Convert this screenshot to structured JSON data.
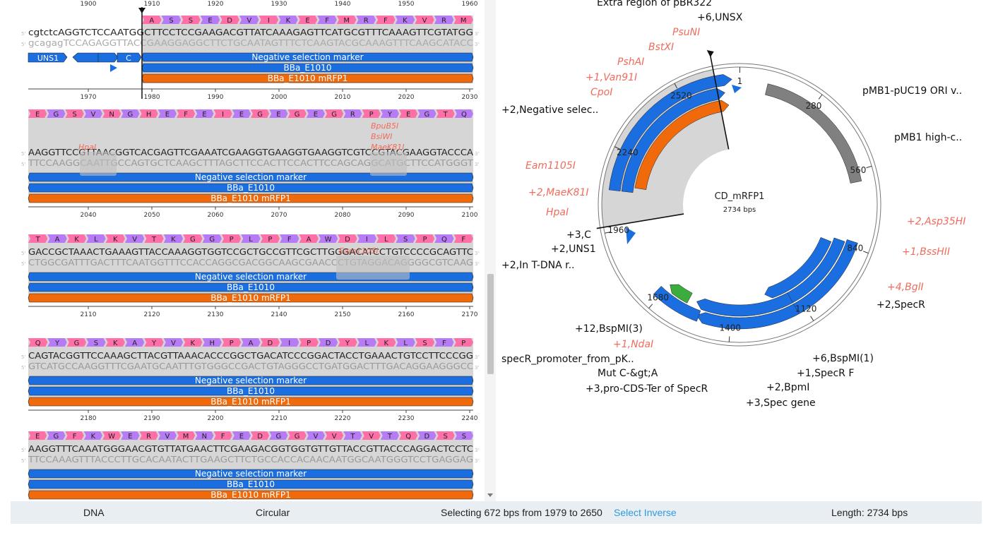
{
  "status": {
    "type": "DNA",
    "topology": "Circular",
    "selection": "Selecting 672 bps from 1979 to 2650",
    "select_inverse": "Select Inverse",
    "length": "Length: 2734 bps"
  },
  "features": {
    "neg": "Negative selection marker",
    "bba": "BBa_E1010",
    "mrfp": "BBa_E1010 mRFP1",
    "uns1": "UNS1",
    "c": "C"
  },
  "rows": [
    {
      "aa": [
        "A",
        "S",
        "S",
        "E",
        "D",
        "V",
        "I",
        "K",
        "E",
        "F",
        "M",
        "R",
        "F",
        "K",
        "V",
        "R",
        "M"
      ],
      "top_ticks": [
        "1900",
        "1910",
        "1920",
        "1930",
        "1940",
        "1950",
        "1960"
      ],
      "fwd": "cgtctcAGGTCTCCAATGGCTTCCTCCGAAGACGTTATCAAAGAGTTCATGCGTTTCAAAGTTCGTATGG",
      "rev": "gcagagTCCAGAGGTTACCGAAGGAGGCTTCTGCAATAGTTTCTCAAGTACGCAAAGTTTCAAGCATACC",
      "ticks": [
        "1970",
        "1980",
        "1990",
        "2000",
        "2010",
        "2020",
        "2030"
      ],
      "enzymes": []
    },
    {
      "aa": [
        "E",
        "G",
        "S",
        "V",
        "N",
        "G",
        "H",
        "E",
        "F",
        "E",
        "I",
        "E",
        "G",
        "E",
        "G",
        "E",
        "G",
        "R",
        "P",
        "Y",
        "E",
        "G",
        "T",
        "Q"
      ],
      "fwd": "AAGGTTCCGTTAACGGTCACGAGTTCGAAATCGAAGGTGAAGGTGAAGGTCGTCCGTACGAAGGTACCCA",
      "rev": "TTCCAAGGCAATTGCCAGTGCTCAAGCTTTAGCTTCCACTTCCACTTCCAGCAGGCATGCTTCCATGGGT",
      "ticks": [
        "2040",
        "2050",
        "2060",
        "2070",
        "2080",
        "2090",
        "2100"
      ],
      "enzymes": [
        "HpaI",
        "BpuB5I",
        "BsiWI",
        "MaeK81I"
      ]
    },
    {
      "aa": [
        "T",
        "A",
        "K",
        "L",
        "K",
        "V",
        "T",
        "K",
        "G",
        "G",
        "P",
        "L",
        "P",
        "F",
        "A",
        "W",
        "D",
        "I",
        "L",
        "S",
        "P",
        "Q",
        "F"
      ],
      "fwd": "GACCGCTAAACTGAAAGTTACCAAAGGTGGTCCGCTGCCGTTCGCTTGGGACATCCTGTCCCCGCAGTTC",
      "rev": "CTGGCGATTTGACTTTCAATGGTTTCCACCAGGCGACGGCAAGCGAACCCTGTAGGACAGGGGCGTCAAG",
      "ticks": [
        "2110",
        "2120",
        "2130",
        "2140",
        "2150",
        "2160",
        "2170"
      ],
      "enzymes": [
        "Eam1105I"
      ]
    },
    {
      "aa": [
        "Q",
        "Y",
        "G",
        "S",
        "K",
        "A",
        "Y",
        "V",
        "K",
        "H",
        "P",
        "A",
        "D",
        "I",
        "P",
        "D",
        "Y",
        "L",
        "K",
        "L",
        "S",
        "F",
        "P"
      ],
      "fwd": "CAGTACGGTTCCAAAGCTTACGTTAAACACCCGGCTGACATCCCGGACTACCTGAAACTGTCCTTCCCGG",
      "rev": "GTCATGCCAAGGTTTCGAATGCAATTTGTGGGCCGACTGTAGGGCCTGATGGACTTTGACAGGAAGGGCC",
      "ticks": [
        "2180",
        "2190",
        "2200",
        "2210",
        "2220",
        "2230",
        "2240"
      ],
      "enzymes": []
    },
    {
      "aa": [
        "E",
        "G",
        "F",
        "K",
        "W",
        "E",
        "R",
        "V",
        "M",
        "N",
        "F",
        "E",
        "D",
        "G",
        "G",
        "V",
        "V",
        "T",
        "V",
        "T",
        "Q",
        "D",
        "S",
        "S"
      ],
      "fwd": "AAGGTTTCAAATGGGAACGTGTTATGAACTTCGAAGACGGTGGTGTTGTTACCGTTACCCAGGACTCCTC",
      "rev": "TTCCAAAGTTTACCCTTGCACAATACTTGAAGCTTCTGCCACCACAACAATGGCAATGGGTCCTGAGGAG",
      "ticks": [],
      "enzymes": []
    }
  ],
  "map": {
    "name": "CD_mRFP1",
    "length_label": "2734 bps",
    "ticks": [
      "1",
      "280",
      "560",
      "840",
      "1120",
      "1400",
      "1680",
      "1960",
      "2240",
      "2520"
    ],
    "labels": [
      "Extra region of pBR322",
      "+6,UNSX",
      "PsuNI",
      "BstXI",
      "PshAI",
      "+1,Van91I",
      "CpoI",
      "+2,Negative selec..",
      "Eam1105I",
      "+2,MaeK81I",
      "HpaI",
      "+3,C",
      "+2,UNS1",
      "+2,In T-DNA r..",
      "pMB1-pUC19 ORI v..",
      "pMB1 high-c..",
      "+2,Asp35HI",
      "+1,BssHII",
      "+4,BglI",
      "+2,SpecR",
      "+12,BspMI(3)",
      "+1,NdaI",
      "specR_promoter_from_pK..",
      "Mut C-&gt;A",
      "+3,pro-CDS-Ter of SpecR",
      "+6,BspMI(1)",
      "+1,SpecR F",
      "+2,BpmI",
      "+3,Spec gene"
    ]
  },
  "colors": {
    "blue": "#1a6ee0",
    "orange": "#f06a0c",
    "grey": "#808080",
    "green": "#3cad3c",
    "enzyme": "#f06c5c",
    "link": "#2f9be0",
    "aa_a": "#ff6fa8",
    "aa_b": "#b77cf5"
  }
}
